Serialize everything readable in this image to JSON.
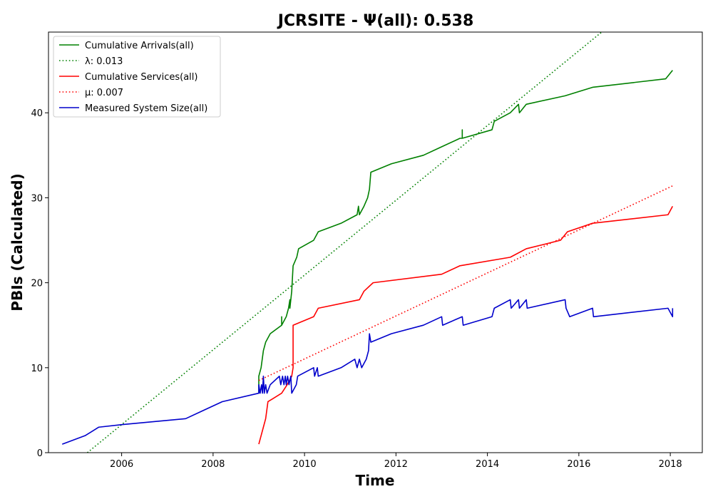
{
  "chart_data": {
    "type": "line",
    "title": "JCRSITE -  Ψ(all): 0.538",
    "xlabel": "Time",
    "ylabel": "PBIs (Calculated)",
    "xlim": [
      2004.4,
      2018.7
    ],
    "ylim": [
      0,
      49.5
    ],
    "xticks": [
      2006,
      2008,
      2010,
      2012,
      2014,
      2016,
      2018
    ],
    "yticks": [
      0,
      10,
      20,
      30,
      40
    ],
    "grid": false,
    "legend_position": "upper left",
    "series": [
      {
        "name": "Cumulative Arrivals(all)",
        "color": "#008000",
        "style": "solid",
        "points": [
          [
            2009.0,
            7
          ],
          [
            2009.0,
            9
          ],
          [
            2009.05,
            10
          ],
          [
            2009.1,
            12
          ],
          [
            2009.15,
            13
          ],
          [
            2009.25,
            14
          ],
          [
            2009.5,
            15
          ],
          [
            2009.5,
            16
          ],
          [
            2009.5,
            15
          ],
          [
            2009.6,
            16
          ],
          [
            2009.65,
            17
          ],
          [
            2009.68,
            18
          ],
          [
            2009.68,
            17
          ],
          [
            2009.72,
            19
          ],
          [
            2009.75,
            22
          ],
          [
            2009.83,
            23
          ],
          [
            2009.87,
            24
          ],
          [
            2010.2,
            25
          ],
          [
            2010.3,
            26
          ],
          [
            2010.8,
            27
          ],
          [
            2011.15,
            28
          ],
          [
            2011.18,
            29
          ],
          [
            2011.2,
            28
          ],
          [
            2011.3,
            29
          ],
          [
            2011.38,
            30
          ],
          [
            2011.42,
            31
          ],
          [
            2011.45,
            33
          ],
          [
            2011.9,
            34
          ],
          [
            2012.6,
            35
          ],
          [
            2013.0,
            36
          ],
          [
            2013.4,
            37
          ],
          [
            2013.45,
            37
          ],
          [
            2013.45,
            38
          ],
          [
            2013.45,
            37
          ],
          [
            2014.1,
            38
          ],
          [
            2014.15,
            39
          ],
          [
            2014.5,
            40
          ],
          [
            2014.68,
            41
          ],
          [
            2014.7,
            40
          ],
          [
            2014.85,
            41
          ],
          [
            2015.7,
            42
          ],
          [
            2016.3,
            43
          ],
          [
            2017.9,
            44
          ],
          [
            2018.05,
            45
          ]
        ]
      },
      {
        "name": "λ: 0.013",
        "color": "#008000",
        "style": "dotted",
        "points": [
          [
            2005.25,
            0
          ],
          [
            2016.5,
            49.5
          ]
        ]
      },
      {
        "name": "Cumulative Services(all)",
        "color": "#ff0000",
        "style": "solid",
        "points": [
          [
            2009.0,
            1
          ],
          [
            2009.05,
            2
          ],
          [
            2009.1,
            3
          ],
          [
            2009.15,
            4
          ],
          [
            2009.2,
            6
          ],
          [
            2009.5,
            7
          ],
          [
            2009.62,
            8
          ],
          [
            2009.72,
            9
          ],
          [
            2009.75,
            10
          ],
          [
            2009.75,
            15
          ],
          [
            2010.2,
            16
          ],
          [
            2010.3,
            17
          ],
          [
            2011.2,
            18
          ],
          [
            2011.3,
            19
          ],
          [
            2011.5,
            20
          ],
          [
            2013.0,
            21
          ],
          [
            2013.4,
            22
          ],
          [
            2014.5,
            23
          ],
          [
            2014.85,
            24
          ],
          [
            2015.6,
            25
          ],
          [
            2015.75,
            26
          ],
          [
            2016.3,
            27
          ],
          [
            2017.95,
            28
          ],
          [
            2018.05,
            29
          ]
        ]
      },
      {
        "name": "μ: 0.007",
        "color": "#ff0000",
        "style": "dotted",
        "points": [
          [
            2009.0,
            8.5
          ],
          [
            2018.05,
            31.4
          ]
        ]
      },
      {
        "name": "Measured System Size(all)",
        "color": "#0000cc",
        "style": "solid",
        "points": [
          [
            2004.7,
            1
          ],
          [
            2005.2,
            2
          ],
          [
            2005.5,
            3
          ],
          [
            2006.0,
            3.3
          ],
          [
            2007.4,
            4
          ],
          [
            2007.8,
            5
          ],
          [
            2008.2,
            6
          ],
          [
            2009.0,
            7
          ],
          [
            2009.0,
            8
          ],
          [
            2009.03,
            7
          ],
          [
            2009.06,
            8
          ],
          [
            2009.08,
            7
          ],
          [
            2009.1,
            9
          ],
          [
            2009.12,
            7
          ],
          [
            2009.15,
            8
          ],
          [
            2009.18,
            7
          ],
          [
            2009.25,
            8
          ],
          [
            2009.45,
            9
          ],
          [
            2009.48,
            8
          ],
          [
            2009.52,
            9
          ],
          [
            2009.55,
            8
          ],
          [
            2009.58,
            9
          ],
          [
            2009.6,
            8
          ],
          [
            2009.63,
            9
          ],
          [
            2009.66,
            8
          ],
          [
            2009.7,
            9
          ],
          [
            2009.72,
            7
          ],
          [
            2009.82,
            8
          ],
          [
            2009.85,
            9
          ],
          [
            2010.2,
            10
          ],
          [
            2010.22,
            9
          ],
          [
            2010.28,
            10
          ],
          [
            2010.3,
            9
          ],
          [
            2010.8,
            10
          ],
          [
            2011.1,
            11
          ],
          [
            2011.15,
            10
          ],
          [
            2011.2,
            11
          ],
          [
            2011.25,
            10
          ],
          [
            2011.35,
            11
          ],
          [
            2011.4,
            12
          ],
          [
            2011.42,
            14
          ],
          [
            2011.45,
            13
          ],
          [
            2011.9,
            14
          ],
          [
            2012.6,
            15
          ],
          [
            2013.0,
            16
          ],
          [
            2013.02,
            15
          ],
          [
            2013.45,
            16
          ],
          [
            2013.47,
            15
          ],
          [
            2014.1,
            16
          ],
          [
            2014.15,
            17
          ],
          [
            2014.5,
            18
          ],
          [
            2014.52,
            17
          ],
          [
            2014.68,
            18
          ],
          [
            2014.7,
            17
          ],
          [
            2014.85,
            18
          ],
          [
            2014.87,
            17
          ],
          [
            2015.7,
            18
          ],
          [
            2015.72,
            17
          ],
          [
            2015.8,
            16
          ],
          [
            2016.3,
            17
          ],
          [
            2016.32,
            16
          ],
          [
            2017.95,
            17
          ],
          [
            2018.05,
            16
          ],
          [
            2018.05,
            17
          ]
        ]
      }
    ]
  }
}
